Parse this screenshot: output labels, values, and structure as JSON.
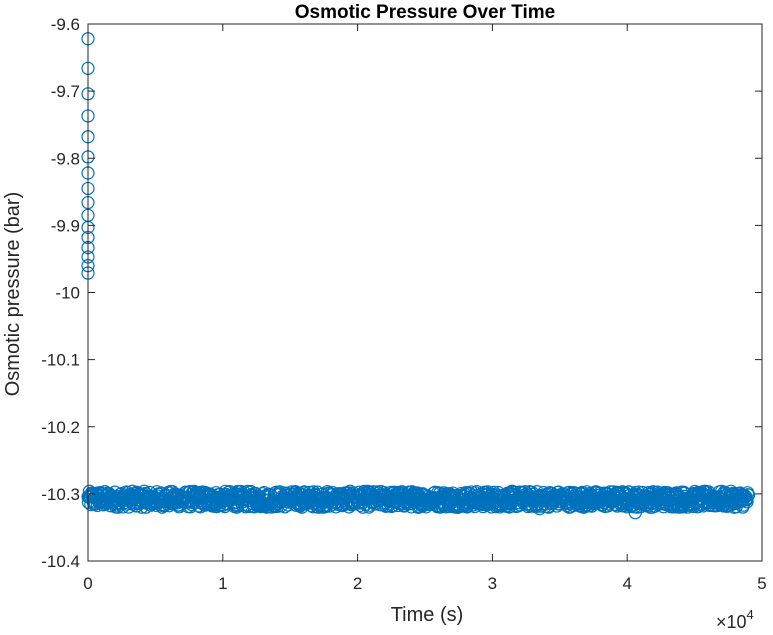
{
  "chart_data": {
    "type": "scatter",
    "title": "Osmotic Pressure Over Time",
    "xlabel": "Time (s)",
    "ylabel": "Osmotic pressure (bar)",
    "x_exponent_base": "×10",
    "x_exponent_power": "4",
    "xlim": [
      0,
      50000
    ],
    "ylim": [
      -10.4,
      -9.6
    ],
    "x_scale_factor": 10000,
    "x_ticks": [
      0,
      10000,
      20000,
      30000,
      40000,
      50000
    ],
    "x_tick_labels": [
      "0",
      "1",
      "2",
      "3",
      "4",
      "5"
    ],
    "y_ticks": [
      -9.6,
      -9.7,
      -9.8,
      -9.9,
      -10.0,
      -10.1,
      -10.2,
      -10.3,
      -10.4
    ],
    "y_tick_labels": [
      "-9.6",
      "-9.7",
      "-9.8",
      "-9.9",
      "-10",
      "-10.1",
      "-10.2",
      "-10.3",
      "-10.4"
    ],
    "grid": false,
    "box": true,
    "marker": "open-circle",
    "marker_color": "#0072BD",
    "series": [
      {
        "description_of_shape": "initial transient at t~0",
        "points": [
          [
            0,
            -9.622
          ],
          [
            0,
            -9.666
          ],
          [
            0,
            -9.704
          ],
          [
            0,
            -9.737
          ],
          [
            0,
            -9.768
          ],
          [
            0,
            -9.798
          ],
          [
            0,
            -9.822
          ],
          [
            0,
            -9.845
          ],
          [
            0,
            -9.866
          ],
          [
            0,
            -9.885
          ],
          [
            0,
            -9.903
          ],
          [
            0,
            -9.918
          ],
          [
            0,
            -9.933
          ],
          [
            0,
            -9.947
          ],
          [
            0,
            -9.96
          ],
          [
            0,
            -9.971
          ]
        ]
      },
      {
        "description_of_shape": "steady band",
        "x_start": 0,
        "x_end": 49000,
        "y_center": -10.308,
        "y_spread": 0.012,
        "n_points": 1400,
        "outliers": [
          [
            40600,
            -10.328
          ],
          [
            33500,
            -10.322
          ],
          [
            12800,
            -10.319
          ]
        ]
      }
    ]
  }
}
